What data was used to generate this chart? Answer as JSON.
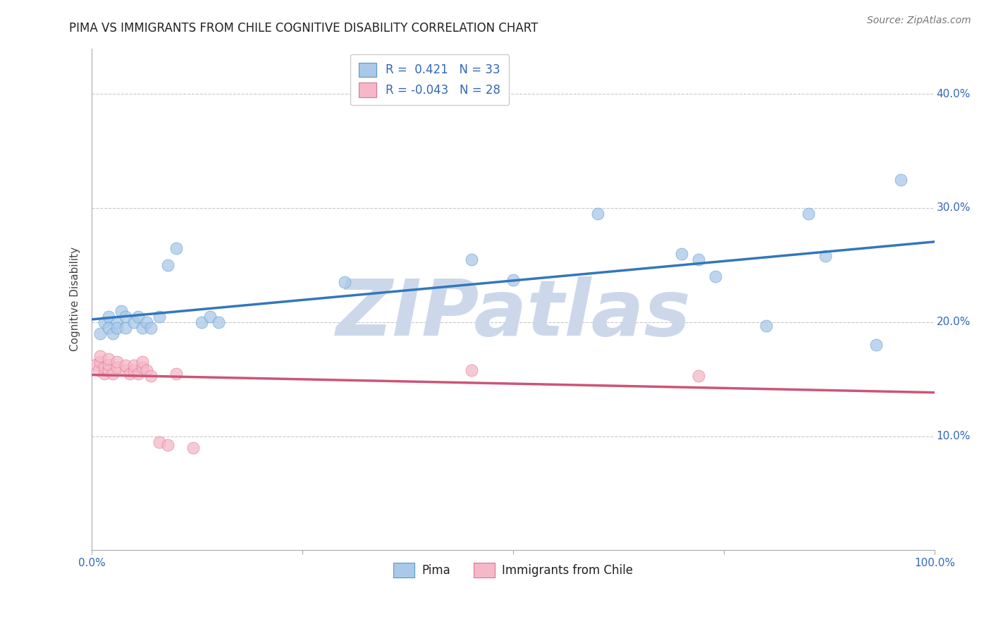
{
  "title": "PIMA VS IMMIGRANTS FROM CHILE COGNITIVE DISABILITY CORRELATION CHART",
  "source": "Source: ZipAtlas.com",
  "ylabel_label": "Cognitive Disability",
  "xlim": [
    0.0,
    1.0
  ],
  "ylim": [
    0.0,
    0.44
  ],
  "xticks": [
    0.0,
    0.25,
    0.5,
    0.75,
    1.0
  ],
  "xticklabels": [
    "0.0%",
    "",
    "",
    "",
    "100.0%"
  ],
  "yticks": [
    0.0,
    0.1,
    0.2,
    0.3,
    0.4
  ],
  "yticklabels": [
    "",
    "10.0%",
    "20.0%",
    "30.0%",
    "40.0%"
  ],
  "pima_R": 0.421,
  "pima_N": 33,
  "chile_R": -0.043,
  "chile_N": 28,
  "pima_color": "#aac8e8",
  "pima_edge_color": "#5599cc",
  "pima_line_color": "#3377bb",
  "chile_color": "#f5b8c8",
  "chile_edge_color": "#e07090",
  "chile_line_color": "#cc5577",
  "watermark": "ZIPatlas",
  "watermark_color": "#ccd8ea",
  "pima_x": [
    0.01,
    0.015,
    0.02,
    0.02,
    0.025,
    0.03,
    0.03,
    0.035,
    0.04,
    0.04,
    0.05,
    0.055,
    0.06,
    0.065,
    0.07,
    0.08,
    0.09,
    0.1,
    0.13,
    0.14,
    0.15,
    0.3,
    0.45,
    0.5,
    0.6,
    0.7,
    0.72,
    0.74,
    0.8,
    0.85,
    0.87,
    0.93,
    0.96
  ],
  "pima_y": [
    0.19,
    0.2,
    0.195,
    0.205,
    0.19,
    0.2,
    0.195,
    0.21,
    0.195,
    0.205,
    0.2,
    0.205,
    0.195,
    0.2,
    0.195,
    0.205,
    0.25,
    0.265,
    0.2,
    0.205,
    0.2,
    0.235,
    0.255,
    0.237,
    0.295,
    0.26,
    0.255,
    0.24,
    0.197,
    0.295,
    0.258,
    0.18,
    0.325
  ],
  "chile_x": [
    0.005,
    0.008,
    0.01,
    0.01,
    0.015,
    0.015,
    0.02,
    0.02,
    0.02,
    0.025,
    0.03,
    0.03,
    0.04,
    0.04,
    0.045,
    0.05,
    0.05,
    0.055,
    0.06,
    0.06,
    0.065,
    0.07,
    0.08,
    0.09,
    0.1,
    0.12,
    0.45,
    0.72
  ],
  "chile_y": [
    0.163,
    0.158,
    0.165,
    0.17,
    0.155,
    0.16,
    0.158,
    0.163,
    0.168,
    0.155,
    0.16,
    0.165,
    0.158,
    0.162,
    0.155,
    0.158,
    0.162,
    0.155,
    0.16,
    0.165,
    0.158,
    0.153,
    0.095,
    0.092,
    0.155,
    0.09,
    0.158,
    0.153
  ],
  "background_color": "#ffffff",
  "grid_color": "#bbbbbb",
  "title_fontsize": 12,
  "axis_label_fontsize": 11,
  "tick_fontsize": 11,
  "legend_fontsize": 12,
  "source_fontsize": 10
}
